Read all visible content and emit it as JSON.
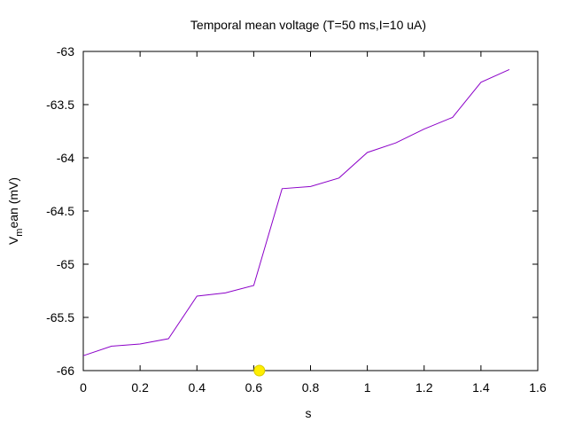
{
  "chart_data": {
    "type": "line",
    "title": "Temporal mean voltage (T=50 ms,I=10 uA)",
    "xlabel": "s",
    "ylabel": {
      "main": "V",
      "sub": "m",
      "rest": "ean (mV)"
    },
    "xlim": [
      0,
      1.6
    ],
    "ylim": [
      -66,
      -63
    ],
    "xticks": [
      0,
      0.2,
      0.4,
      0.6,
      0.8,
      1,
      1.2,
      1.4,
      1.6
    ],
    "yticks": [
      -66,
      -65.5,
      -65,
      -64.5,
      -64,
      -63.5,
      -63
    ],
    "xtick_labels": [
      "0",
      "0.2",
      "0.4",
      "0.6",
      "0.8",
      "1",
      "1.2",
      "1.4",
      "1.6"
    ],
    "ytick_labels": [
      "-66",
      "-65.5",
      "-65",
      "-64.5",
      "-64",
      "-63.5",
      "-63"
    ],
    "grid": false,
    "series": [
      {
        "color": "#8b00c8",
        "x": [
          0,
          0.1,
          0.2,
          0.3,
          0.4,
          0.5,
          0.6,
          0.7,
          0.8,
          0.9,
          1.0,
          1.1,
          1.2,
          1.3,
          1.4,
          1.5
        ],
        "y": [
          -65.86,
          -65.77,
          -65.75,
          -65.7,
          -65.3,
          -65.27,
          -65.2,
          -64.29,
          -64.27,
          -64.19,
          -63.95,
          -63.86,
          -63.73,
          -63.62,
          -63.29,
          -63.17
        ]
      }
    ],
    "marker": {
      "x": 0.62,
      "y": -66,
      "color": "#ffee00"
    }
  }
}
